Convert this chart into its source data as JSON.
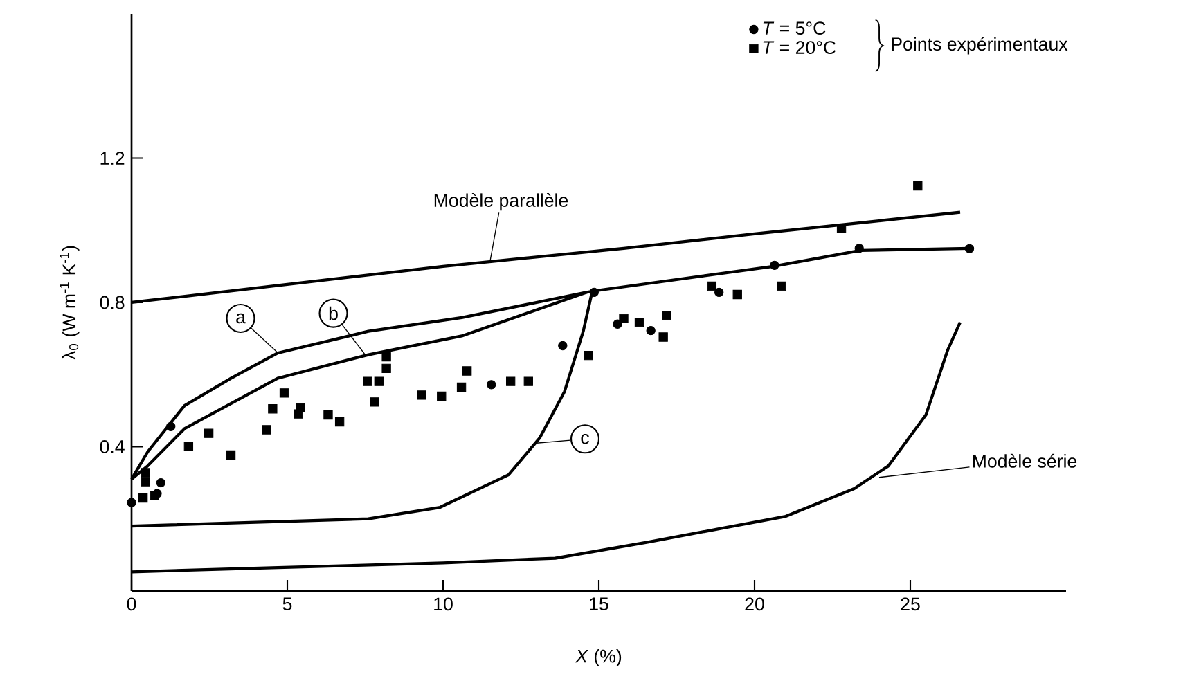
{
  "chart_data": {
    "type": "line",
    "xlabel": "*X* (%)",
    "ylabel": "λ$_{0}$ (W m$^{-1}$ K$^{-1}$)",
    "legend_title": "Points expérimentaux",
    "legend": "top right",
    "xlim": [
      0,
      30
    ],
    "ylim": [
      0,
      1.6
    ],
    "xticks": [
      0,
      5,
      10,
      15,
      20,
      25
    ],
    "yticks": [
      0.4,
      0.8,
      1.2
    ],
    "series": [
      {
        "color": "#000000",
        "line_style": "solid",
        "marker": "none",
        "x": [
          0,
          5,
          10,
          15.8,
          20,
          26.6
        ],
        "values": [
          0.8,
          0.85,
          0.9,
          0.95,
          0.99,
          1.05
        ]
      },
      {
        "color": "#000000",
        "line_style": "solid",
        "marker": "none",
        "x": [
          0,
          4.7,
          10,
          13.6,
          16.6,
          21.0,
          23.2,
          24.3,
          25.5,
          26.2,
          26.6
        ],
        "values": [
          0.053,
          0.065,
          0.078,
          0.091,
          0.136,
          0.207,
          0.284,
          0.347,
          0.488,
          0.668,
          0.745
        ]
      },
      {
        "color": "#000000",
        "line_style": "solid",
        "marker": "none",
        "x": [
          0,
          0.52,
          1.7,
          3.2,
          4.7,
          7.6,
          10.6,
          14.6,
          15.1,
          20.6,
          23.4,
          26.9
        ],
        "values": [
          0.31,
          0.386,
          0.514,
          0.59,
          0.66,
          0.72,
          0.758,
          0.828,
          0.835,
          0.9,
          0.944,
          0.95
        ]
      },
      {
        "color": "#000000",
        "line_style": "solid",
        "marker": "none",
        "x": [
          0,
          0.52,
          1.7,
          4.7,
          7.6,
          10.6,
          14.6
        ],
        "values": [
          0.31,
          0.347,
          0.45,
          0.59,
          0.655,
          0.707,
          0.828
        ]
      },
      {
        "color": "#000000",
        "line_style": "solid",
        "marker": "none",
        "x": [
          0,
          7.6,
          9.9,
          12.1,
          13.1,
          13.9,
          14.5,
          14.8
        ],
        "values": [
          0.18,
          0.2,
          0.232,
          0.322,
          0.424,
          0.553,
          0.72,
          0.835
        ]
      },
      {
        "type": "scatter",
        "name": "*T* = 5°C",
        "color": "#000000",
        "marker": "circle",
        "x": [
          0,
          0.82,
          0.94,
          1.26,
          11.55,
          13.84,
          14.85,
          15.6,
          16.67,
          18.86,
          20.64,
          23.36,
          26.9
        ],
        "values": [
          0.245,
          0.27,
          0.3,
          0.456,
          0.572,
          0.68,
          0.828,
          0.74,
          0.722,
          0.828,
          0.903,
          0.95,
          0.949
        ]
      },
      {
        "type": "scatter",
        "name": "*T* = 20°C",
        "color": "#000000",
        "marker": "square",
        "x": [
          0.37,
          0.74,
          0.45,
          0.45,
          1.83,
          2.48,
          3.19,
          4.33,
          4.53,
          4.9,
          5.35,
          5.42,
          6.31,
          6.68,
          7.57,
          7.94,
          7.8,
          8.18,
          8.18,
          9.31,
          9.95,
          10.59,
          10.77,
          12.17,
          12.74,
          14.67,
          15.8,
          16.3,
          17.07,
          17.18,
          18.63,
          19.45,
          20.86,
          22.79,
          25.24
        ],
        "values": [
          0.258,
          0.265,
          0.303,
          0.328,
          0.401,
          0.437,
          0.377,
          0.447,
          0.505,
          0.549,
          0.491,
          0.508,
          0.488,
          0.469,
          0.581,
          0.581,
          0.524,
          0.649,
          0.617,
          0.543,
          0.54,
          0.565,
          0.61,
          0.581,
          0.581,
          0.653,
          0.755,
          0.745,
          0.704,
          0.764,
          0.845,
          0.822,
          0.845,
          1.005,
          1.123
        ]
      }
    ],
    "annotations": [
      {
        "text": "Modèle parallèle",
        "x": 11.5,
        "y": 0.91
      },
      {
        "text": "Modèle série",
        "x": 24.0,
        "y": 0.315
      },
      {
        "text": "a",
        "x": 4.7,
        "y": 0.66
      },
      {
        "text": "b",
        "x": 7.5,
        "y": 0.655
      },
      {
        "text": "c",
        "x": 13.0,
        "y": 0.41
      }
    ]
  }
}
